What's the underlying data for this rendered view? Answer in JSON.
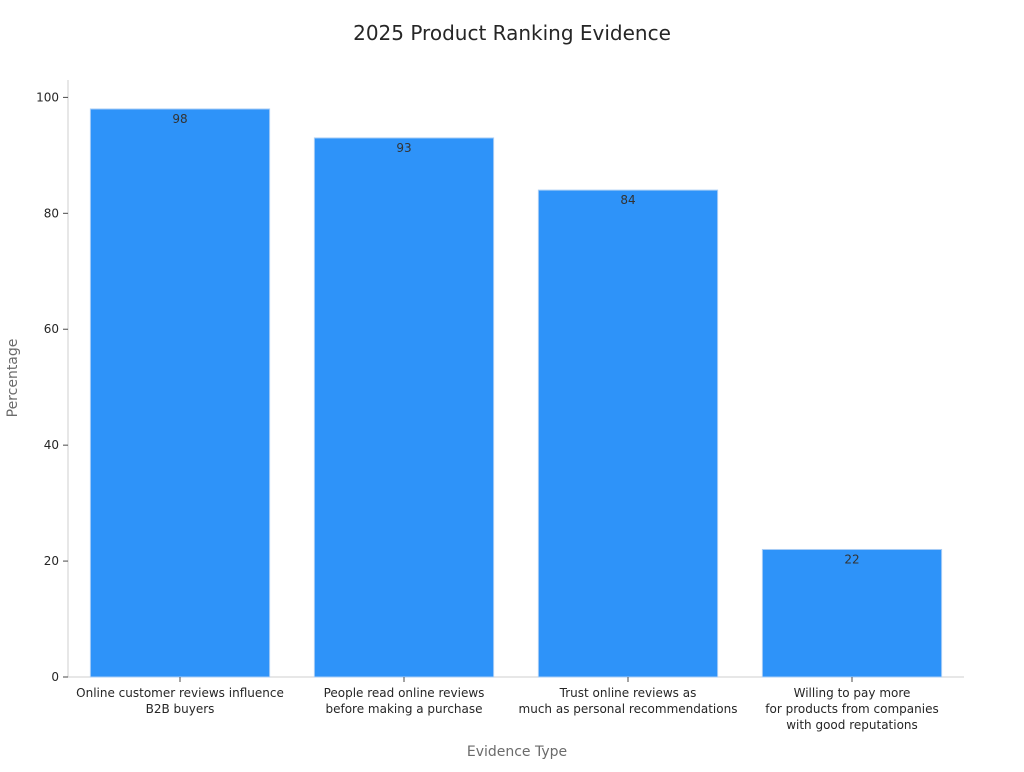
{
  "chart_data": {
    "type": "bar",
    "title": "2025 Product Ranking Evidence",
    "xlabel": "Evidence Type",
    "ylabel": "Percentage",
    "categories": [
      [
        "Online customer reviews influence",
        "B2B buyers"
      ],
      [
        "People read online reviews",
        "before making a purchase"
      ],
      [
        "Trust online reviews as",
        "much as personal recommendations"
      ],
      [
        "Willing to pay more",
        "for products from companies",
        "with good reputations"
      ]
    ],
    "values": [
      98,
      93,
      84,
      22
    ],
    "data_labels": [
      "98",
      "93",
      "84",
      "22"
    ],
    "ylim": [
      0,
      103
    ],
    "yticks": [
      0,
      20,
      40,
      60,
      80,
      100
    ],
    "bar_color": "#2e93f9",
    "bar_edge_color": "#a9cdf5",
    "grid": false,
    "legend": "none"
  }
}
